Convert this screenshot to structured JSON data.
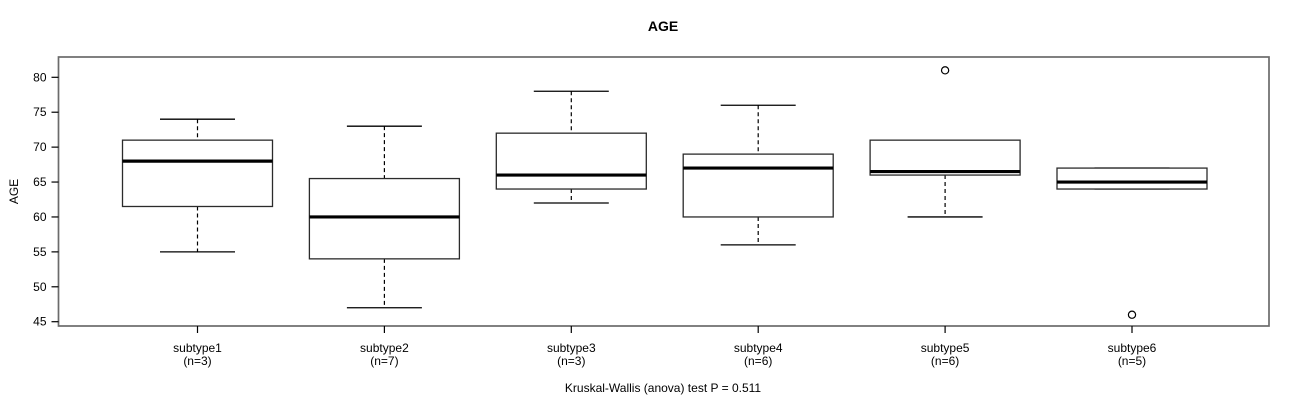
{
  "chart_data": {
    "type": "boxplot",
    "title": "AGE",
    "ylabel": "AGE",
    "xlabel": "",
    "caption": "Kruskal-Wallis (anova) test P = 0.511",
    "y_ticks": [
      45,
      50,
      55,
      60,
      65,
      70,
      75,
      80
    ],
    "ylim": [
      44.4,
      82.9
    ],
    "grid": false,
    "groups": [
      {
        "label": "subtype1",
        "n_label": "(n=3)",
        "n": 3,
        "whisker_low": 55,
        "q1": 61.5,
        "median": 68,
        "q3": 71,
        "whisker_high": 74,
        "outliers": []
      },
      {
        "label": "subtype2",
        "n_label": "(n=7)",
        "n": 7,
        "whisker_low": 47,
        "q1": 54,
        "median": 60,
        "q3": 65.5,
        "whisker_high": 73,
        "outliers": []
      },
      {
        "label": "subtype3",
        "n_label": "(n=3)",
        "n": 3,
        "whisker_low": 62,
        "q1": 64,
        "median": 66,
        "q3": 72,
        "whisker_high": 78,
        "outliers": []
      },
      {
        "label": "subtype4",
        "n_label": "(n=6)",
        "n": 6,
        "whisker_low": 56,
        "q1": 60,
        "median": 67,
        "q3": 69,
        "whisker_high": 76,
        "outliers": []
      },
      {
        "label": "subtype5",
        "n_label": "(n=6)",
        "n": 6,
        "whisker_low": 60,
        "q1": 66,
        "median": 66.5,
        "q3": 71,
        "whisker_high": 71,
        "outliers": [
          81
        ]
      },
      {
        "label": "subtype6",
        "n_label": "(n=5)",
        "n": 5,
        "whisker_low": 64,
        "q1": 64,
        "median": 65,
        "q3": 67,
        "whisker_high": 67,
        "outliers": [
          46
        ]
      }
    ],
    "colors": {
      "frame": "#6b6b6b",
      "box_stroke": "#2b2b2b",
      "box_fill": "#ffffff",
      "median": "#000000",
      "whisker": "#000000",
      "text": "#000000"
    }
  }
}
